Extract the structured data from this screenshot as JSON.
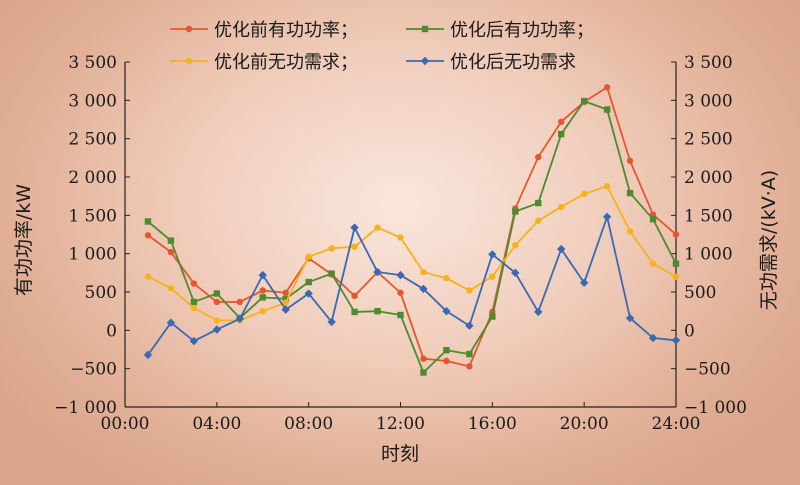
{
  "chart_data": {
    "type": "line",
    "x": [
      "01:00",
      "02:00",
      "03:00",
      "04:00",
      "05:00",
      "06:00",
      "07:00",
      "08:00",
      "09:00",
      "10:00",
      "11:00",
      "12:00",
      "13:00",
      "14:00",
      "15:00",
      "16:00",
      "17:00",
      "18:00",
      "19:00",
      "20:00",
      "21:00",
      "22:00",
      "23:00",
      "24:00"
    ],
    "xticks": [
      "00:00",
      "04:00",
      "08:00",
      "12:00",
      "16:00",
      "20:00",
      "24:00"
    ],
    "xlabel": "时刻",
    "ylabel_left": "有功功率/kW",
    "ylabel_right": "无功需求/(kV·A)",
    "ylim": [
      -1000,
      3500
    ],
    "yticks": [
      "−1 000",
      "−500",
      "0",
      "500",
      "1 000",
      "1 500",
      "2 000",
      "2 500",
      "3 000",
      "3 500"
    ],
    "yticks_right": [
      "−1 000",
      "−500",
      "0",
      "500",
      "1 000",
      "1 500",
      "2 000",
      "2 500",
      "3 000",
      "3 500"
    ],
    "legend_position": "top",
    "grid": false,
    "series": [
      {
        "name": "优化前有功功率；",
        "color": "#e4572e",
        "marker": "circle",
        "values": [
          1240,
          1020,
          610,
          370,
          370,
          520,
          490,
          940,
          730,
          450,
          760,
          490,
          -370,
          -400,
          -470,
          240,
          1590,
          2260,
          2720,
          2980,
          3170,
          2210,
          1510,
          1250
        ]
      },
      {
        "name": "优化后有功功率；",
        "color": "#4e8a2e",
        "marker": "square",
        "values": [
          1420,
          1170,
          370,
          480,
          160,
          430,
          410,
          630,
          740,
          240,
          250,
          200,
          -550,
          -260,
          -310,
          180,
          1550,
          1660,
          2560,
          2990,
          2880,
          1790,
          1450,
          870
        ]
      },
      {
        "name": "优化前无功需求；",
        "color": "#f5b21b",
        "marker": "circle",
        "values": [
          700,
          550,
          290,
          130,
          130,
          250,
          360,
          960,
          1070,
          1090,
          1340,
          1210,
          760,
          680,
          520,
          700,
          1110,
          1430,
          1610,
          1780,
          1880,
          1290,
          870,
          700
        ]
      },
      {
        "name": "优化后无功需求",
        "color": "#3a69b4",
        "marker": "diamond",
        "values": [
          -320,
          100,
          -140,
          10,
          150,
          720,
          270,
          480,
          110,
          1340,
          760,
          720,
          540,
          250,
          60,
          990,
          750,
          240,
          1060,
          620,
          1480,
          160,
          -100,
          -130
        ]
      }
    ]
  }
}
